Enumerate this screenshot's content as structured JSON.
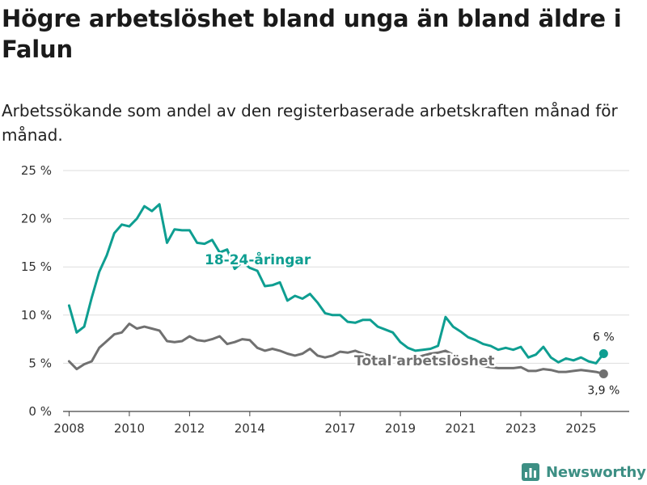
{
  "title": "Högre arbetslöshet bland unga än bland äldre i Falun",
  "subtitle": "Arbetssökande som andel av den registerbaserade arbetskraften månad för månad.",
  "brand": "Newsworthy",
  "colors": {
    "youth": "#0e9e91",
    "total": "#707070",
    "grid": "#dddddd",
    "axis": "#444444",
    "brand": "#3d8f84"
  },
  "chart_data": {
    "type": "line",
    "title": "Högre arbetslöshet bland unga än bland äldre i Falun",
    "xlabel": "",
    "ylabel": "",
    "ylim": [
      0,
      25
    ],
    "xlim": [
      2007.8,
      2026.6
    ],
    "y_ticks": [
      0,
      5,
      10,
      15,
      20,
      25
    ],
    "y_tick_labels": [
      "0 %",
      "5 %",
      "10 %",
      "15 %",
      "20 %",
      "25 %"
    ],
    "x_ticks": [
      2008,
      2010,
      2012,
      2014,
      2017,
      2019,
      2021,
      2023,
      2025
    ],
    "x_tick_labels": [
      "2008",
      "2010",
      "2012",
      "2014",
      "2017",
      "2019",
      "2021",
      "2023",
      "2025"
    ],
    "grid": true,
    "series": [
      {
        "name": "18-24-åringar",
        "label": "18-24-åringar",
        "end_label": "6 %",
        "x": [
          2008.0,
          2008.25,
          2008.5,
          2008.75,
          2009.0,
          2009.25,
          2009.5,
          2009.75,
          2010.0,
          2010.25,
          2010.5,
          2010.75,
          2011.0,
          2011.25,
          2011.5,
          2011.75,
          2012.0,
          2012.25,
          2012.5,
          2012.75,
          2013.0,
          2013.25,
          2013.5,
          2013.75,
          2014.0,
          2014.25,
          2014.5,
          2014.75,
          2015.0,
          2015.25,
          2015.5,
          2015.75,
          2016.0,
          2016.25,
          2016.5,
          2016.75,
          2017.0,
          2017.25,
          2017.5,
          2017.75,
          2018.0,
          2018.25,
          2018.5,
          2018.75,
          2019.0,
          2019.25,
          2019.5,
          2019.75,
          2020.0,
          2020.25,
          2020.5,
          2020.75,
          2021.0,
          2021.25,
          2021.5,
          2021.75,
          2022.0,
          2022.25,
          2022.5,
          2022.75,
          2023.0,
          2023.25,
          2023.5,
          2023.75,
          2024.0,
          2024.25,
          2024.5,
          2024.75,
          2025.0,
          2025.25,
          2025.5,
          2025.75
        ],
        "values": [
          11.0,
          8.2,
          8.8,
          11.8,
          14.5,
          16.2,
          18.5,
          19.4,
          19.2,
          20.0,
          21.3,
          20.8,
          21.5,
          17.5,
          18.9,
          18.8,
          18.8,
          17.5,
          17.4,
          17.8,
          16.5,
          16.8,
          14.8,
          15.5,
          14.9,
          14.6,
          13.0,
          13.1,
          13.4,
          11.5,
          12.0,
          11.7,
          12.2,
          11.3,
          10.2,
          10.0,
          10.0,
          9.3,
          9.2,
          9.5,
          9.5,
          8.8,
          8.5,
          8.2,
          7.2,
          6.6,
          6.3,
          6.4,
          6.5,
          6.8,
          9.8,
          8.8,
          8.3,
          7.7,
          7.4,
          7.0,
          6.8,
          6.4,
          6.6,
          6.4,
          6.7,
          5.6,
          5.9,
          6.7,
          5.6,
          5.1,
          5.5,
          5.3,
          5.6,
          5.2,
          5.0,
          6.0
        ]
      },
      {
        "name": "Total arbetslöshet",
        "label": "Total arbetslöshet",
        "end_label": "3,9 %",
        "x": [
          2008.0,
          2008.25,
          2008.5,
          2008.75,
          2009.0,
          2009.25,
          2009.5,
          2009.75,
          2010.0,
          2010.25,
          2010.5,
          2010.75,
          2011.0,
          2011.25,
          2011.5,
          2011.75,
          2012.0,
          2012.25,
          2012.5,
          2012.75,
          2013.0,
          2013.25,
          2013.5,
          2013.75,
          2014.0,
          2014.25,
          2014.5,
          2014.75,
          2015.0,
          2015.25,
          2015.5,
          2015.75,
          2016.0,
          2016.25,
          2016.5,
          2016.75,
          2017.0,
          2017.25,
          2017.5,
          2017.75,
          2018.0,
          2018.25,
          2018.5,
          2018.75,
          2019.0,
          2019.25,
          2019.5,
          2019.75,
          2020.0,
          2020.25,
          2020.5,
          2020.75,
          2021.0,
          2021.25,
          2021.5,
          2021.75,
          2022.0,
          2022.25,
          2022.5,
          2022.75,
          2023.0,
          2023.25,
          2023.5,
          2023.75,
          2024.0,
          2024.25,
          2024.5,
          2024.75,
          2025.0,
          2025.25,
          2025.5,
          2025.75
        ],
        "values": [
          5.2,
          4.4,
          4.9,
          5.2,
          6.6,
          7.3,
          8.0,
          8.2,
          9.1,
          8.6,
          8.8,
          8.6,
          8.4,
          7.3,
          7.2,
          7.3,
          7.8,
          7.4,
          7.3,
          7.5,
          7.8,
          7.0,
          7.2,
          7.5,
          7.4,
          6.6,
          6.3,
          6.5,
          6.3,
          6.0,
          5.8,
          6.0,
          6.5,
          5.8,
          5.6,
          5.8,
          6.2,
          6.1,
          6.3,
          6.0,
          5.8,
          5.6,
          5.5,
          5.6,
          5.6,
          5.5,
          5.5,
          5.8,
          6.0,
          6.1,
          6.3,
          5.9,
          5.4,
          5.2,
          4.9,
          4.7,
          4.6,
          4.5,
          4.5,
          4.5,
          4.6,
          4.2,
          4.2,
          4.4,
          4.3,
          4.1,
          4.1,
          4.2,
          4.3,
          4.2,
          4.1,
          3.9
        ]
      }
    ]
  }
}
